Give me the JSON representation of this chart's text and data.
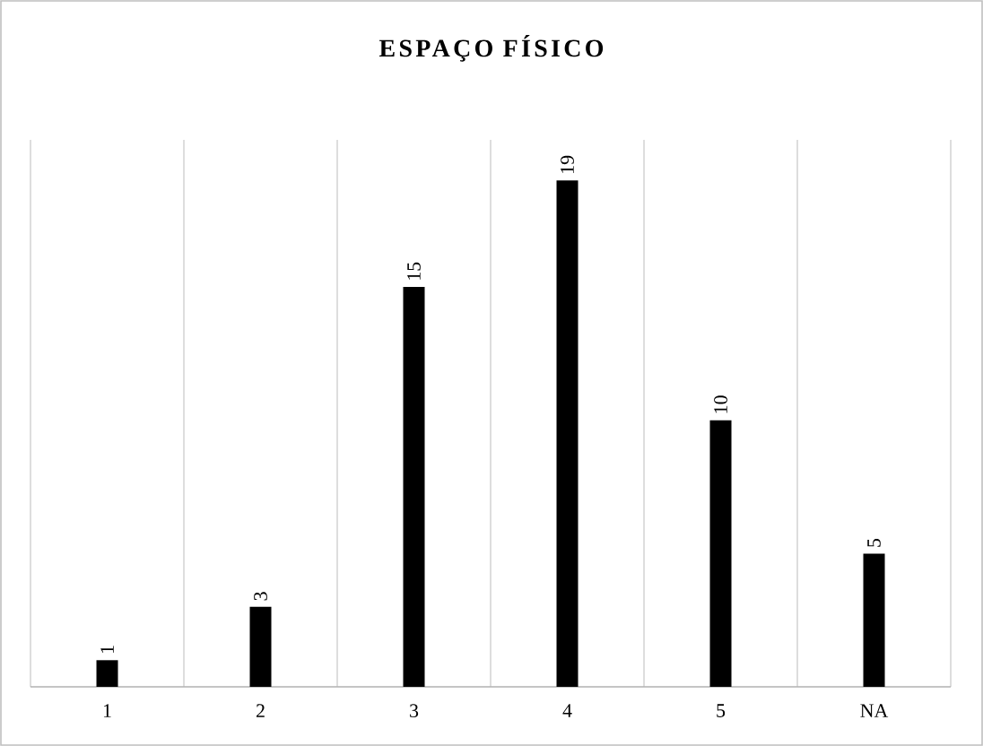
{
  "chart_data": {
    "type": "bar",
    "title": "ESPAÇO FÍSICO",
    "categories": [
      "1",
      "2",
      "3",
      "4",
      "5",
      "NA"
    ],
    "values": [
      1,
      3,
      15,
      19,
      10,
      5
    ],
    "color": "#000000",
    "data_labels": true,
    "grid": "x"
  }
}
